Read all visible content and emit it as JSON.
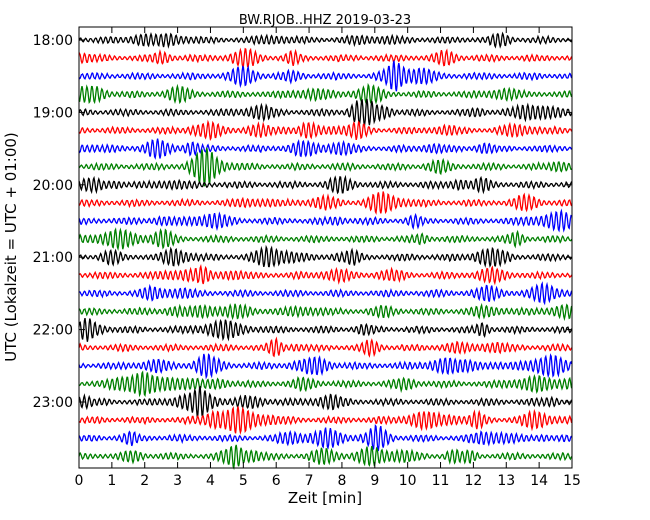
{
  "chart_data": {
    "type": "line",
    "title": "BW.RJOB..HHZ 2019-03-23",
    "xlabel": "Zeit  [min]",
    "ylabel": "UTC (Lokalzeit = UTC + 01:00)",
    "xlim": [
      0,
      15
    ],
    "xticks": [
      "0",
      "1",
      "2",
      "3",
      "4",
      "5",
      "6",
      "7",
      "8",
      "9",
      "10",
      "11",
      "12",
      "13",
      "14",
      "15"
    ],
    "yticks": [
      "18:00",
      "19:00",
      "20:00",
      "21:00",
      "22:00",
      "23:00"
    ],
    "ytick_rows": [
      0,
      4,
      8,
      12,
      16,
      20
    ],
    "row_count": 24,
    "row_interval_min": 15,
    "colors": [
      "#000000",
      "#ff0000",
      "#0000ff",
      "#008000"
    ],
    "grid": false,
    "legend": "none"
  }
}
